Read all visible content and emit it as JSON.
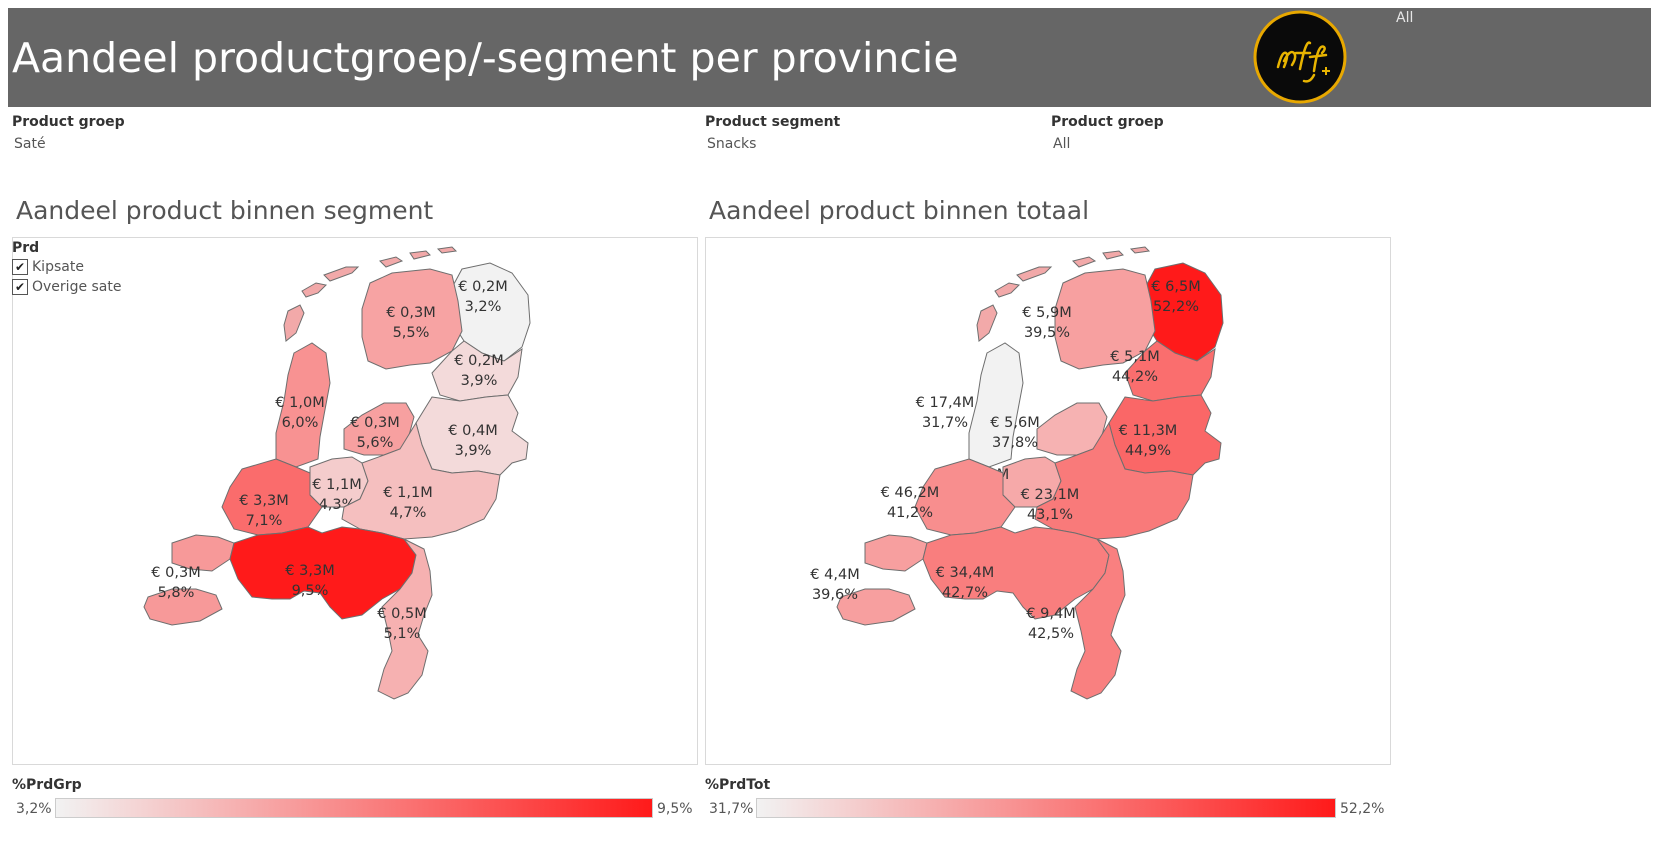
{
  "header": {
    "title": "Aandeel productgroep/-segment per provincie",
    "corner_label": "All",
    "background": "#666666"
  },
  "filters": [
    {
      "label": "Product groep",
      "value": "Saté"
    },
    {
      "label": "Product segment",
      "value": "Snacks"
    },
    {
      "label": "Product groep",
      "value": "All"
    }
  ],
  "left_map": {
    "title": "Aandeel product binnen segment",
    "legend": {
      "title": "Prd",
      "items": [
        {
          "label": "Kipsate",
          "checked": true
        },
        {
          "label": "Overige sate",
          "checked": true
        }
      ]
    },
    "provinces": [
      {
        "name": "Groningen",
        "value": "€ 0,2M",
        "pct": "3,2%",
        "share": 3.2
      },
      {
        "name": "Friesland",
        "value": "€ 0,3M",
        "pct": "5,5%",
        "share": 5.5
      },
      {
        "name": "Drenthe",
        "value": "€ 0,2M",
        "pct": "3,9%",
        "share": 3.9
      },
      {
        "name": "Noord-Holland",
        "value": "€ 1,0M",
        "pct": "6,0%",
        "share": 6.0
      },
      {
        "name": "Flevoland",
        "value": "€ 0,3M",
        "pct": "5,6%",
        "share": 5.6
      },
      {
        "name": "Overijssel",
        "value": "€ 0,4M",
        "pct": "3,9%",
        "share": 3.9
      },
      {
        "name": "Utrecht",
        "value": "€ 1,1M",
        "pct": "4,3%",
        "share": 4.3
      },
      {
        "name": "Zuid-Holland",
        "value": "€ 3,3M",
        "pct": "7,1%",
        "share": 7.1
      },
      {
        "name": "Gelderland",
        "value": "€ 1,1M",
        "pct": "4,7%",
        "share": 4.7
      },
      {
        "name": "Zeeland",
        "value": "€ 0,3M",
        "pct": "5,8%",
        "share": 5.8
      },
      {
        "name": "Noord-Brabant",
        "value": "€ 3,3M",
        "pct": "9,5%",
        "share": 9.5
      },
      {
        "name": "Limburg",
        "value": "€ 0,5M",
        "pct": "5,1%",
        "share": 5.1
      }
    ],
    "scale": {
      "title": "%PrdGrp",
      "min_label": "3,2%",
      "max_label": "9,5%",
      "min": 3.2,
      "max": 9.5
    }
  },
  "right_map": {
    "title": "Aandeel product binnen totaal",
    "provinces": [
      {
        "name": "Groningen",
        "value": "€ 6,5M",
        "pct": "52,2%",
        "share": 52.2
      },
      {
        "name": "Friesland",
        "value": "€ 5,9M",
        "pct": "39,5%",
        "share": 39.5
      },
      {
        "name": "Drenthe",
        "value": "€ 5,1M",
        "pct": "44,2%",
        "share": 44.2
      },
      {
        "name": "Noord-Holland",
        "value": "€ 17,4M",
        "pct": "31,7%",
        "share": 31.7
      },
      {
        "name": "Flevoland",
        "value": "€ 5,6M",
        "pct": "37,8%",
        "share": 37.8
      },
      {
        "name": "Overijssel",
        "value": "€ 11,3M",
        "pct": "44,9%",
        "share": 44.9
      },
      {
        "name": "Utrecht",
        "value": "€ 26,8M",
        "pct": "38,6%",
        "share": 38.6
      },
      {
        "name": "Zuid-Holland",
        "value": "€ 46,2M",
        "pct": "41,2%",
        "share": 41.2
      },
      {
        "name": "Gelderland",
        "value": "€ 23,1M",
        "pct": "43,1%",
        "share": 43.1
      },
      {
        "name": "Zeeland",
        "value": "€ 4,4M",
        "pct": "39,6%",
        "share": 39.6
      },
      {
        "name": "Noord-Brabant",
        "value": "€ 34,4M",
        "pct": "42,7%",
        "share": 42.7
      },
      {
        "name": "Limburg",
        "value": "€ 9,4M",
        "pct": "42,5%",
        "share": 42.5
      }
    ],
    "scale": {
      "title": "%PrdTot",
      "min_label": "31,7%",
      "max_label": "52,2%",
      "min": 31.7,
      "max": 52.2
    }
  },
  "colors": {
    "low": "#f2f2f2",
    "high": "#ff1a1a",
    "stroke": "#6e6e6e",
    "islands": "#f2a9a9"
  }
}
